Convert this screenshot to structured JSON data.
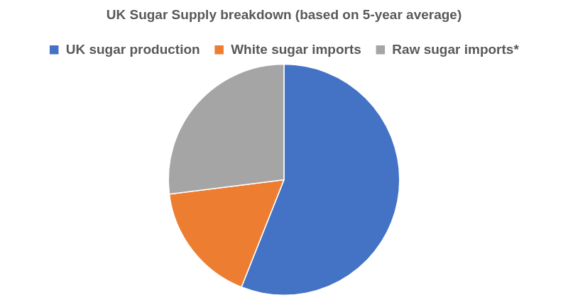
{
  "chart_data": {
    "type": "pie",
    "title": "UK Sugar Supply breakdown (based on 5-year average)",
    "categories": [
      "UK sugar production",
      "White sugar imports",
      "Raw sugar imports*"
    ],
    "values": [
      56,
      17,
      27
    ],
    "colors": [
      "#4472c4",
      "#ed7d31",
      "#a5a5a5"
    ],
    "legend": "top"
  }
}
